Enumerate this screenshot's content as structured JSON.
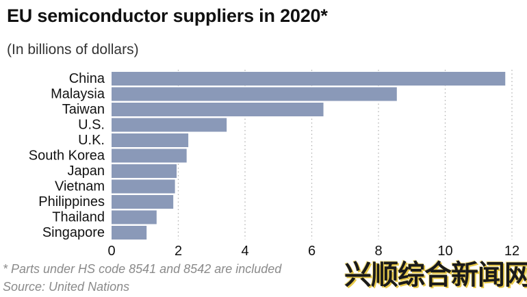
{
  "title": "EU semiconductor suppliers in 2020*",
  "subtitle": "(In billions of dollars)",
  "footnote": "* Parts under HS code 8541 and 8542 are included",
  "source": "Source: United Nations",
  "watermark": "兴顺综合新闻网",
  "colors": {
    "bar": "#8a99b8",
    "grid": "#b0b0b0",
    "text": "#111111",
    "note": "#8a8a8a"
  },
  "chart_data": {
    "type": "bar",
    "orientation": "horizontal",
    "categories": [
      "China",
      "Malaysia",
      "Taiwan",
      "U.S.",
      "U.K.",
      "South Korea",
      "Japan",
      "Vietnam",
      "Philippines",
      "Thailand",
      "Singapore"
    ],
    "values": [
      11.8,
      8.55,
      6.35,
      3.45,
      2.3,
      2.25,
      1.95,
      1.9,
      1.85,
      1.35,
      1.05
    ],
    "xlim": [
      0,
      12
    ],
    "xticks": [
      0,
      2,
      4,
      6,
      8,
      10,
      12
    ],
    "grid": "vertical-dotted",
    "legend": "none"
  }
}
